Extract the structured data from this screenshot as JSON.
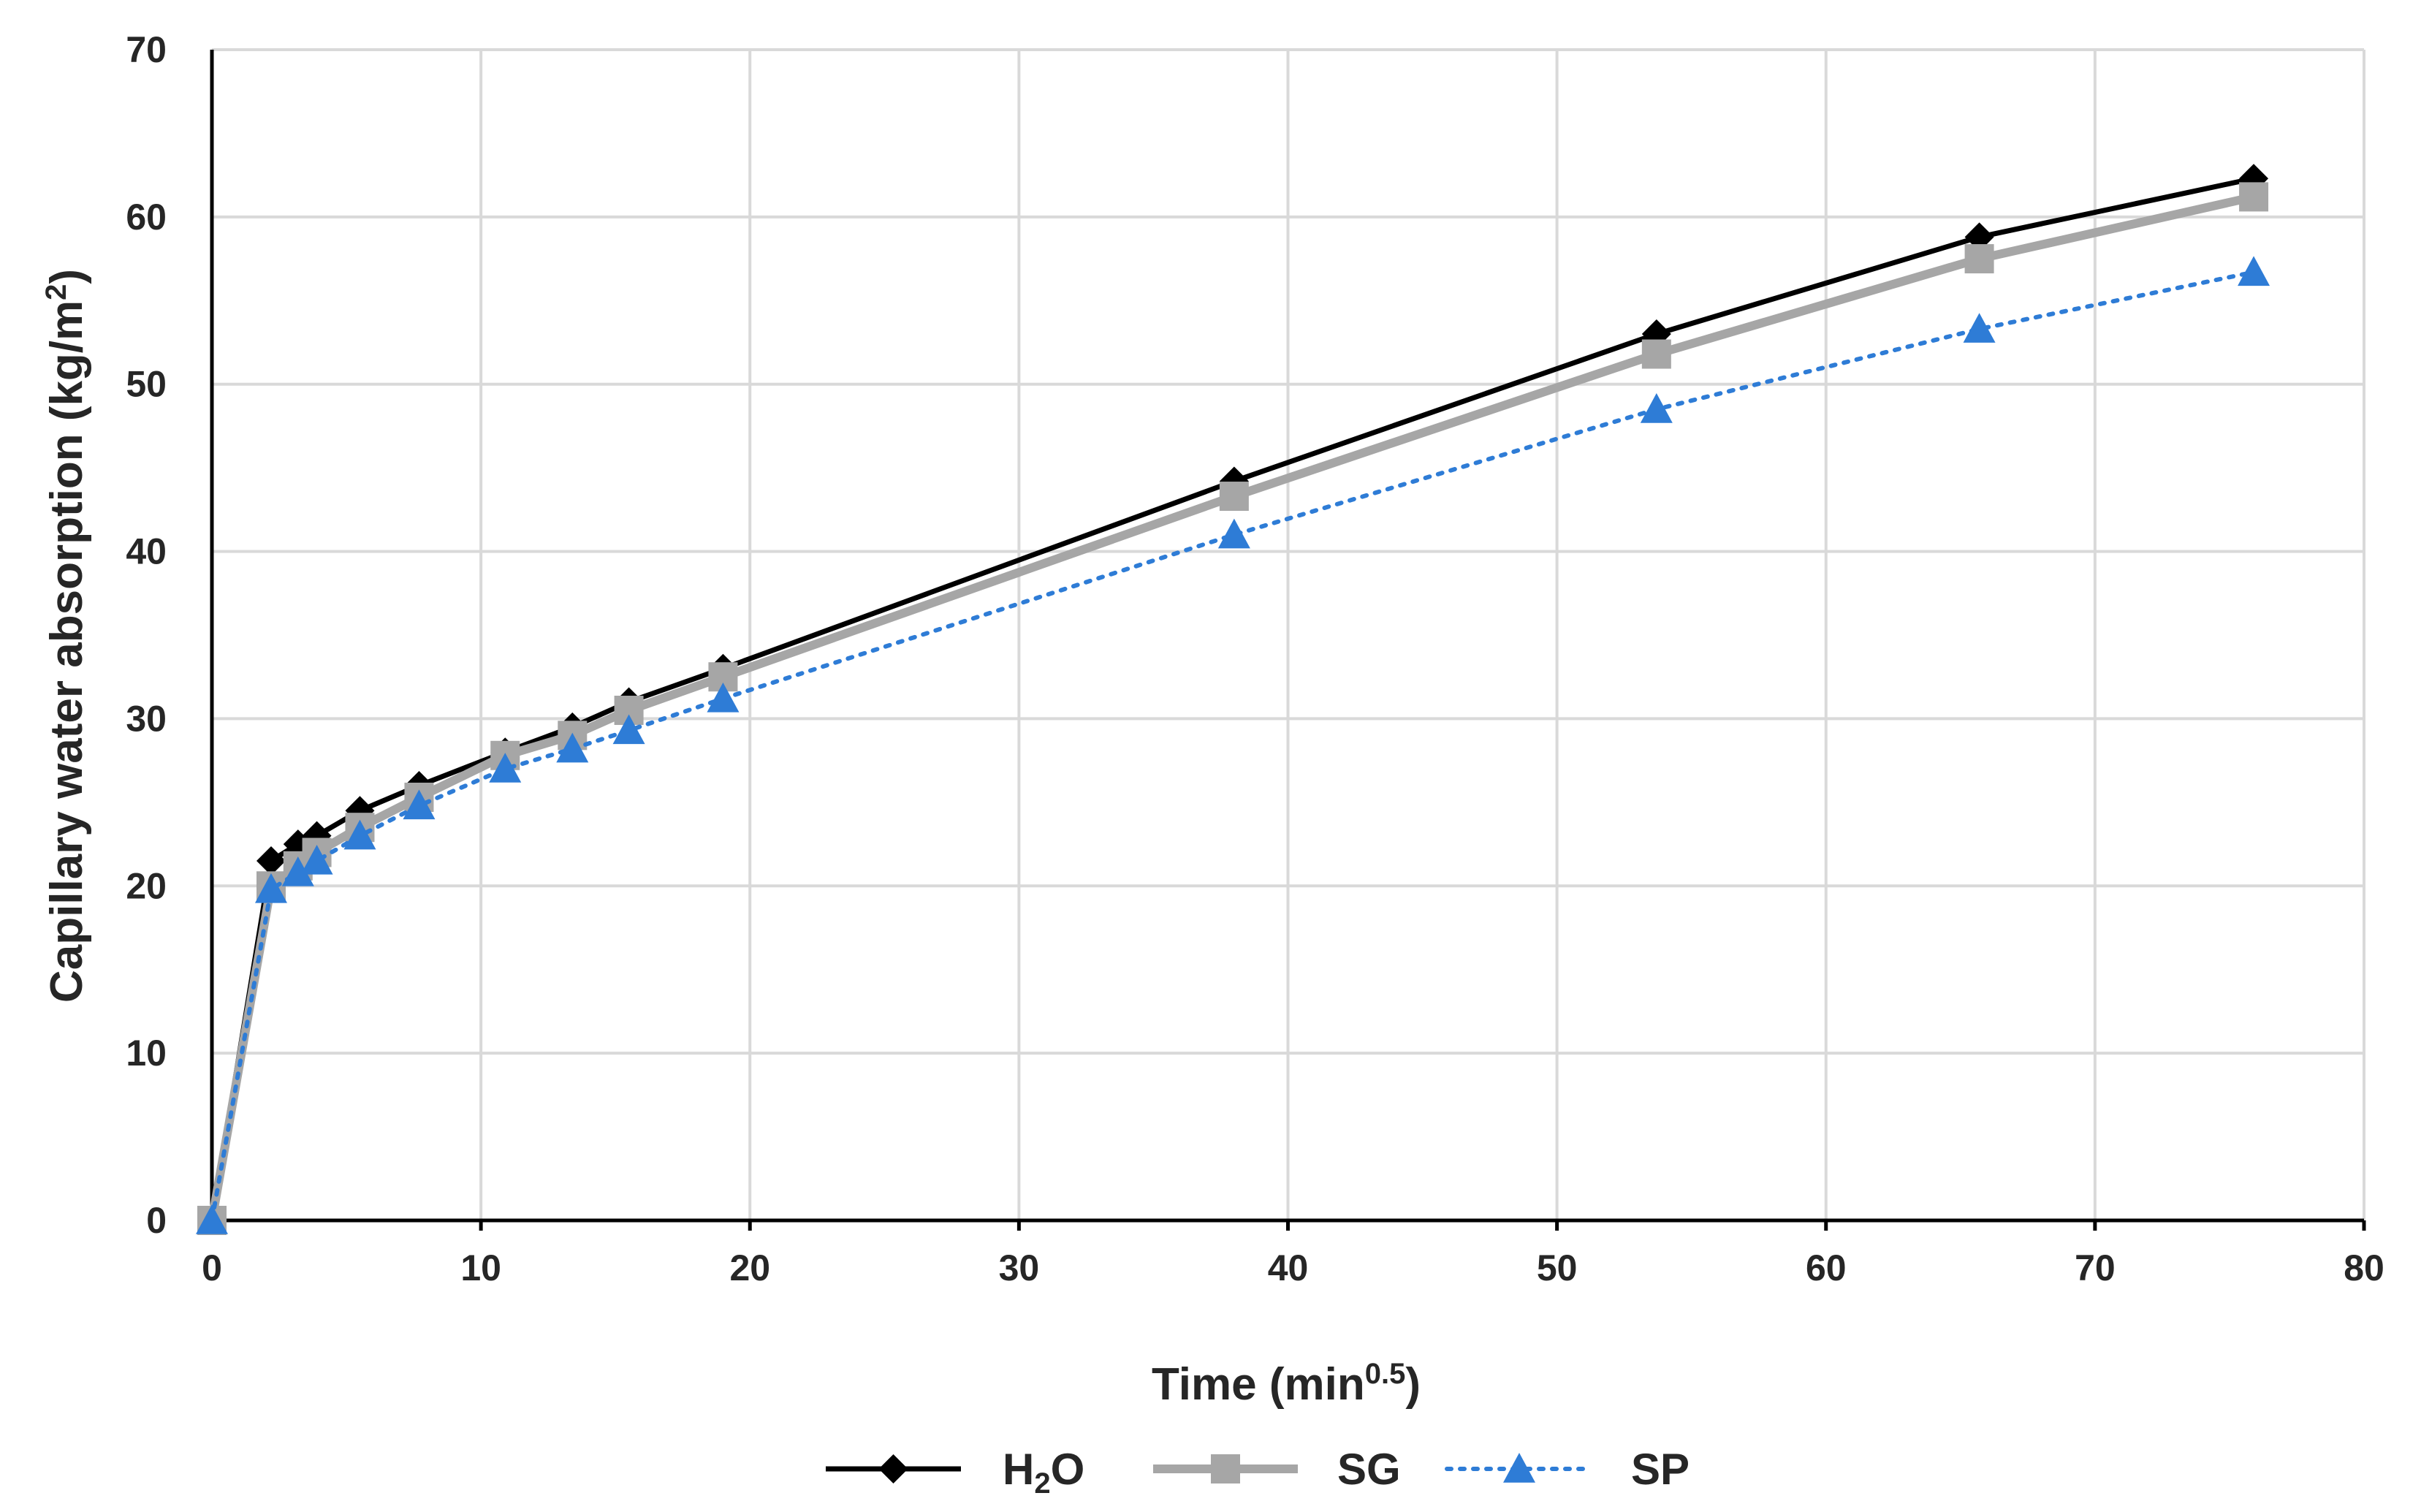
{
  "chart_data": {
    "type": "line",
    "title": "",
    "xlabel": "Time (min",
    "xlabel_sup": "0.5",
    "xlabel_close": ")",
    "ylabel": "Capillary water absorption (kg/m",
    "ylabel_sup": "2",
    "ylabel_close": ")",
    "xlim": [
      0,
      80
    ],
    "ylim": [
      0,
      70
    ],
    "xticks": [
      0,
      10,
      20,
      30,
      40,
      50,
      60,
      70,
      80
    ],
    "yticks": [
      0,
      10,
      20,
      30,
      40,
      50,
      60,
      70
    ],
    "grid": true,
    "legend_position": "bottom",
    "series": [
      {
        "name": "H2O",
        "label_main": "H",
        "label_sub": "2",
        "label_tail": "O",
        "color": "#000000",
        "marker": "diamond",
        "style": "solid",
        "x": [
          0,
          2.2,
          3.2,
          3.9,
          5.5,
          7.7,
          10.9,
          13.4,
          15.5,
          19.0,
          38.0,
          53.7,
          65.7,
          75.9
        ],
        "y": [
          0,
          21.5,
          22.5,
          23.0,
          24.5,
          26.0,
          28.0,
          29.5,
          31.0,
          33.0,
          44.2,
          53.0,
          58.8,
          62.3
        ]
      },
      {
        "name": "SG",
        "label_main": "SG",
        "label_sub": "",
        "label_tail": "",
        "color": "#a6a6a6",
        "marker": "square",
        "style": "solid",
        "x": [
          0,
          2.2,
          3.2,
          3.9,
          5.5,
          7.7,
          10.9,
          13.4,
          15.5,
          19.0,
          38.0,
          53.7,
          65.7,
          75.9
        ],
        "y": [
          0,
          20.0,
          21.2,
          22.0,
          23.5,
          25.3,
          27.8,
          29.0,
          30.5,
          32.5,
          43.3,
          51.8,
          57.5,
          61.2
        ]
      },
      {
        "name": "SP",
        "label_main": "SP",
        "label_sub": "",
        "label_tail": "",
        "color": "#2e7cd6",
        "marker": "triangle",
        "style": "dotted",
        "x": [
          0,
          2.2,
          3.2,
          3.9,
          5.5,
          7.7,
          10.9,
          13.4,
          15.5,
          19.0,
          38.0,
          53.7,
          65.7,
          75.9
        ],
        "y": [
          0,
          19.8,
          20.8,
          21.5,
          23.0,
          24.8,
          27.0,
          28.2,
          29.3,
          31.2,
          41.0,
          48.5,
          53.3,
          56.7
        ]
      }
    ]
  }
}
